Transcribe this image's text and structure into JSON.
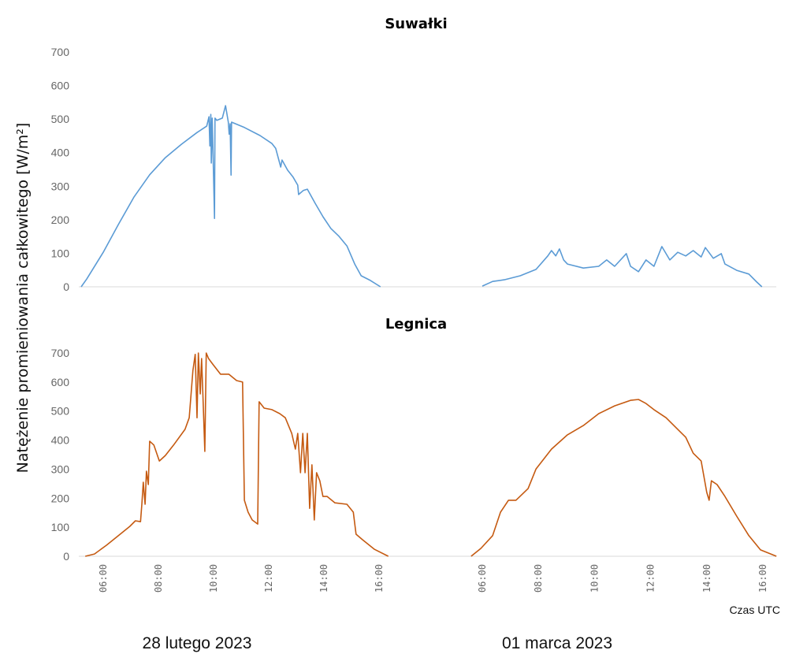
{
  "chart_data": [
    {
      "type": "line",
      "title": "Suwałki",
      "color": "#5b9bd5",
      "title_color": "#1f78c8",
      "ylim": [
        0,
        700
      ],
      "yticks": [
        0,
        100,
        200,
        300,
        400,
        500,
        600,
        700
      ],
      "grid": false,
      "series": [
        {
          "day": 0,
          "points": [
            [
              "05:12",
              0
            ],
            [
              "05:24",
              23
            ],
            [
              "06:00",
              103
            ],
            [
              "06:33",
              186
            ],
            [
              "07:07",
              268
            ],
            [
              "07:41",
              334
            ],
            [
              "08:15",
              385
            ],
            [
              "08:50",
              425
            ],
            [
              "09:24",
              460
            ],
            [
              "09:45",
              479
            ],
            [
              "09:50",
              507
            ],
            [
              "09:52",
              420
            ],
            [
              "09:54",
              514
            ],
            [
              "09:55",
              369
            ],
            [
              "09:57",
              503
            ],
            [
              "10:02",
              204
            ],
            [
              "10:03",
              503
            ],
            [
              "10:07",
              496
            ],
            [
              "10:19",
              503
            ],
            [
              "10:26",
              540
            ],
            [
              "10:32",
              491
            ],
            [
              "10:34",
              455
            ],
            [
              "10:36",
              486
            ],
            [
              "10:38",
              333
            ],
            [
              "10:39",
              491
            ],
            [
              "11:07",
              475
            ],
            [
              "11:41",
              451
            ],
            [
              "12:07",
              427
            ],
            [
              "12:15",
              413
            ],
            [
              "12:26",
              357
            ],
            [
              "12:29",
              378
            ],
            [
              "12:41",
              348
            ],
            [
              "12:53",
              327
            ],
            [
              "13:03",
              303
            ],
            [
              "13:05",
              275
            ],
            [
              "13:15",
              287
            ],
            [
              "13:24",
              291
            ],
            [
              "13:41",
              249
            ],
            [
              "13:58",
              209
            ],
            [
              "14:15",
              174
            ],
            [
              "14:33",
              150
            ],
            [
              "14:50",
              122
            ],
            [
              "15:07",
              68
            ],
            [
              "15:21",
              33
            ],
            [
              "15:41",
              19
            ],
            [
              "16:03",
              0
            ]
          ]
        },
        {
          "day": 1,
          "points": [
            [
              "06:00",
              2
            ],
            [
              "06:22",
              16
            ],
            [
              "06:47",
              21
            ],
            [
              "07:21",
              33
            ],
            [
              "07:55",
              52
            ],
            [
              "08:20",
              92
            ],
            [
              "08:28",
              108
            ],
            [
              "08:37",
              92
            ],
            [
              "08:45",
              113
            ],
            [
              "08:54",
              80
            ],
            [
              "09:02",
              68
            ],
            [
              "09:36",
              56
            ],
            [
              "10:09",
              61
            ],
            [
              "10:26",
              80
            ],
            [
              "10:43",
              61
            ],
            [
              "11:08",
              99
            ],
            [
              "11:17",
              61
            ],
            [
              "11:34",
              45
            ],
            [
              "11:50",
              80
            ],
            [
              "12:07",
              61
            ],
            [
              "12:24",
              120
            ],
            [
              "12:41",
              80
            ],
            [
              "12:58",
              103
            ],
            [
              "13:15",
              92
            ],
            [
              "13:31",
              108
            ],
            [
              "13:48",
              89
            ],
            [
              "13:57",
              117
            ],
            [
              "14:14",
              85
            ],
            [
              "14:31",
              99
            ],
            [
              "14:39",
              68
            ],
            [
              "15:04",
              49
            ],
            [
              "15:30",
              38
            ],
            [
              "15:47",
              14
            ],
            [
              "15:58",
              0
            ]
          ]
        }
      ]
    },
    {
      "type": "line",
      "title": "Legnica",
      "color": "#c55a11",
      "title_color": "#c55a11",
      "ylim": [
        0,
        700
      ],
      "yticks": [
        0,
        100,
        200,
        300,
        400,
        500,
        600,
        700
      ],
      "grid": false,
      "series": [
        {
          "day": 0,
          "points": [
            [
              "05:21",
              0
            ],
            [
              "05:41",
              8
            ],
            [
              "06:07",
              38
            ],
            [
              "06:33",
              71
            ],
            [
              "06:58",
              103
            ],
            [
              "07:10",
              122
            ],
            [
              "07:21",
              119
            ],
            [
              "07:24",
              179
            ],
            [
              "07:27",
              255
            ],
            [
              "07:31",
              179
            ],
            [
              "07:34",
              293
            ],
            [
              "07:38",
              247
            ],
            [
              "07:41",
              396
            ],
            [
              "07:50",
              383
            ],
            [
              "08:02",
              328
            ],
            [
              "08:15",
              347
            ],
            [
              "08:33",
              383
            ],
            [
              "08:58",
              437
            ],
            [
              "09:07",
              477
            ],
            [
              "09:15",
              640
            ],
            [
              "09:20",
              695
            ],
            [
              "09:24",
              477
            ],
            [
              "09:27",
              700
            ],
            [
              "09:31",
              559
            ],
            [
              "09:34",
              681
            ],
            [
              "09:37",
              545
            ],
            [
              "09:41",
              361
            ],
            [
              "09:44",
              700
            ],
            [
              "09:49",
              681
            ],
            [
              "09:58",
              662
            ],
            [
              "10:15",
              627
            ],
            [
              "10:33",
              627
            ],
            [
              "10:50",
              605
            ],
            [
              "11:03",
              600
            ],
            [
              "11:07",
              193
            ],
            [
              "11:15",
              152
            ],
            [
              "11:24",
              125
            ],
            [
              "11:36",
              111
            ],
            [
              "11:39",
              532
            ],
            [
              "11:50",
              510
            ],
            [
              "12:07",
              505
            ],
            [
              "12:24",
              491
            ],
            [
              "12:36",
              477
            ],
            [
              "12:50",
              423
            ],
            [
              "12:58",
              369
            ],
            [
              "13:03",
              423
            ],
            [
              "13:09",
              288
            ],
            [
              "13:14",
              423
            ],
            [
              "13:19",
              288
            ],
            [
              "13:24",
              423
            ],
            [
              "13:29",
              165
            ],
            [
              "13:34",
              315
            ],
            [
              "13:39",
              125
            ],
            [
              "13:44",
              288
            ],
            [
              "13:51",
              260
            ],
            [
              "13:58",
              206
            ],
            [
              "14:07",
              206
            ],
            [
              "14:24",
              184
            ],
            [
              "14:50",
              179
            ],
            [
              "15:04",
              152
            ],
            [
              "15:10",
              76
            ],
            [
              "15:24",
              57
            ],
            [
              "15:50",
              24
            ],
            [
              "16:20",
              0
            ]
          ]
        },
        {
          "day": 1,
          "points": [
            [
              "05:36",
              0
            ],
            [
              "05:57",
              27
            ],
            [
              "06:22",
              71
            ],
            [
              "06:39",
              152
            ],
            [
              "06:56",
              193
            ],
            [
              "07:12",
              193
            ],
            [
              "07:38",
              233
            ],
            [
              "07:55",
              301
            ],
            [
              "08:28",
              369
            ],
            [
              "09:02",
              418
            ],
            [
              "09:36",
              450
            ],
            [
              "10:09",
              491
            ],
            [
              "10:43",
              518
            ],
            [
              "11:17",
              537
            ],
            [
              "11:34",
              540
            ],
            [
              "11:50",
              526
            ],
            [
              "12:07",
              505
            ],
            [
              "12:33",
              477
            ],
            [
              "12:58",
              437
            ],
            [
              "13:15",
              410
            ],
            [
              "13:31",
              355
            ],
            [
              "13:48",
              328
            ],
            [
              "14:00",
              220
            ],
            [
              "14:05",
              193
            ],
            [
              "14:10",
              260
            ],
            [
              "14:22",
              247
            ],
            [
              "14:39",
              206
            ],
            [
              "15:04",
              138
            ],
            [
              "15:30",
              71
            ],
            [
              "15:55",
              22
            ],
            [
              "16:29",
              0
            ]
          ]
        }
      ]
    }
  ],
  "axes": {
    "ylabel": "Natężenie promieniowania całkowitego [W/m²]",
    "xlabel": "Czas UTC",
    "xticks": [
      "06:00",
      "08:00",
      "10:00",
      "12:00",
      "14:00",
      "16:00"
    ],
    "days": [
      "28 lutego 2023",
      "01 marca 2023"
    ]
  }
}
